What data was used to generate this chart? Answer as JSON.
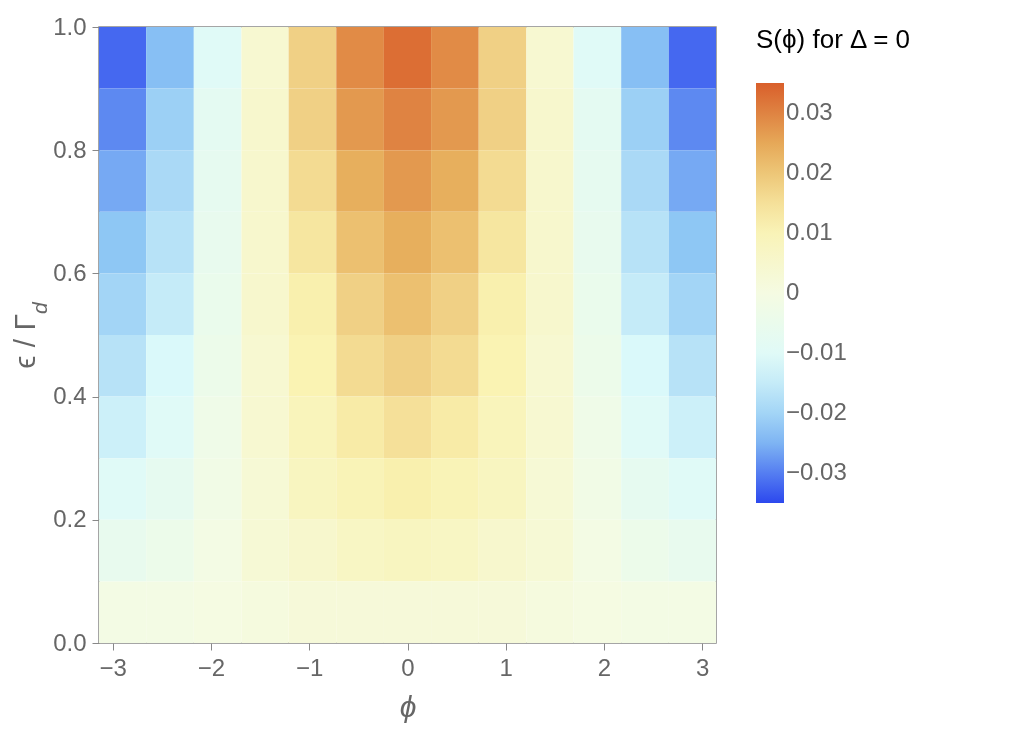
{
  "chart_data": {
    "type": "heatmap",
    "xlabel": "ϕ",
    "ylabel": "ϵ / Γ$_{d}$",
    "clabel": "S(ϕ) for Δ = 0",
    "x": [
      -2.9,
      -2.42,
      -1.93,
      -1.45,
      -0.97,
      -0.48,
      0,
      0.48,
      0.97,
      1.45,
      1.93,
      2.42,
      2.9
    ],
    "y": [
      0.95,
      0.85,
      0.75,
      0.65,
      0.55,
      0.45,
      0.35,
      0.25,
      0.15,
      0.05
    ],
    "cells": [
      [
        -0.032,
        -0.024,
        -0.01,
        0.004,
        0.018,
        0.029,
        0.033,
        0.029,
        0.018,
        0.004,
        -0.01,
        -0.024,
        -0.032
      ],
      [
        -0.029,
        -0.021,
        -0.008,
        0.005,
        0.018,
        0.027,
        0.03,
        0.027,
        0.018,
        0.005,
        -0.008,
        -0.021,
        -0.029
      ],
      [
        -0.026,
        -0.019,
        -0.007,
        0.005,
        0.016,
        0.024,
        0.027,
        0.024,
        0.016,
        0.005,
        -0.007,
        -0.019,
        -0.026
      ],
      [
        -0.023,
        -0.017,
        -0.006,
        0.005,
        0.014,
        0.021,
        0.024,
        0.021,
        0.014,
        0.005,
        -0.006,
        -0.017,
        -0.023
      ],
      [
        -0.02,
        -0.015,
        -0.005,
        0.005,
        0.012,
        0.018,
        0.021,
        0.018,
        0.012,
        0.005,
        -0.005,
        -0.015,
        -0.02
      ],
      [
        -0.017,
        -0.012,
        -0.004,
        0.004,
        0.011,
        0.016,
        0.018,
        0.016,
        0.011,
        0.004,
        -0.004,
        -0.012,
        -0.017
      ],
      [
        -0.014,
        -0.01,
        -0.003,
        0.004,
        0.009,
        0.013,
        0.015,
        0.013,
        0.009,
        0.004,
        -0.003,
        -0.01,
        -0.014
      ],
      [
        -0.01,
        -0.007,
        -0.002,
        0.003,
        0.008,
        0.01,
        0.012,
        0.01,
        0.008,
        0.003,
        -0.002,
        -0.007,
        -0.01
      ],
      [
        -0.006,
        -0.004,
        -0.001,
        0.003,
        0.005,
        0.007,
        0.008,
        0.007,
        0.005,
        0.003,
        -0.001,
        -0.004,
        -0.006
      ],
      [
        -0.001,
        -0.001,
        0.0,
        0.001,
        0.002,
        0.002,
        0.002,
        0.002,
        0.002,
        0.001,
        0.0,
        -0.001,
        -0.001
      ]
    ],
    "xlim": [
      -3.14,
      3.14
    ],
    "xticks": [
      {
        "value": -3,
        "label": "−3"
      },
      {
        "value": -2,
        "label": "−2"
      },
      {
        "value": -1,
        "label": "−1"
      },
      0,
      1,
      2,
      3
    ],
    "ylim": [
      0,
      1
    ],
    "yticks": [
      {
        "value": 0,
        "label": "0.0"
      },
      0.2,
      0.4,
      0.6,
      0.8,
      {
        "value": 1,
        "label": "1.0"
      }
    ],
    "clim": [
      -0.035,
      0.035
    ],
    "cticks": [
      0.03,
      0.02,
      0.01,
      0,
      {
        "value": -0.01,
        "label": "−0.01"
      },
      {
        "value": -0.02,
        "label": "−0.02"
      },
      {
        "value": -0.03,
        "label": "−0.03"
      }
    ]
  }
}
